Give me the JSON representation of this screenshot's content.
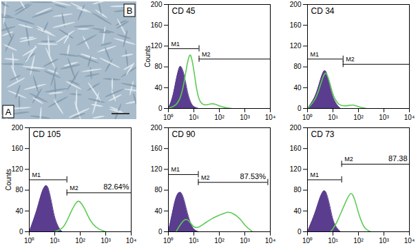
{
  "panel_labels": {
    "photo": "A",
    "histograms": "B"
  },
  "chart_data": [
    {
      "type": "line",
      "title": "CD 45",
      "log": "x",
      "xlim": [
        1,
        10000
      ],
      "xticks": [
        {
          "value": 1,
          "label": "10⁰"
        },
        {
          "value": 10,
          "label": "10¹"
        },
        {
          "value": 100,
          "label": "10²"
        },
        {
          "value": 1000,
          "label": "10³"
        },
        {
          "value": 10000,
          "label": "10⁴"
        }
      ],
      "ylim": [
        0,
        200
      ],
      "yticks": [
        0,
        40,
        80,
        120,
        160,
        200
      ],
      "ylabel": "Counts",
      "series": [
        {
          "type": "area",
          "color": "#5a3d8f",
          "x": [
            1,
            1.5,
            2,
            2.5,
            3,
            4,
            5,
            6,
            8,
            10,
            15
          ],
          "values": [
            0,
            20,
            55,
            75,
            85,
            70,
            45,
            25,
            8,
            3,
            0
          ]
        },
        {
          "type": "line",
          "color": "#5ccc55",
          "x": [
            1,
            2,
            3,
            4,
            5,
            6,
            7,
            8,
            10,
            12,
            15,
            20,
            30,
            50,
            70,
            100,
            150,
            300
          ],
          "values": [
            0,
            5,
            20,
            45,
            75,
            95,
            105,
            100,
            75,
            45,
            20,
            8,
            6,
            10,
            8,
            5,
            2,
            0
          ]
        }
      ],
      "gates": [
        {
          "name": "M1",
          "x": [
            1,
            16
          ],
          "level": 115
        },
        {
          "name": "M2",
          "x": [
            16,
            10000
          ],
          "level": 95
        }
      ]
    },
    {
      "type": "line",
      "title": "CD 34",
      "log": "x",
      "xlim": [
        1,
        10000
      ],
      "xticks": [
        {
          "value": 1,
          "label": "10⁰"
        },
        {
          "value": 10,
          "label": "10¹"
        },
        {
          "value": 100,
          "label": "10²"
        },
        {
          "value": 1000,
          "label": "10³"
        },
        {
          "value": 10000,
          "label": "10⁴"
        }
      ],
      "ylim": [
        0,
        200
      ],
      "yticks": [
        0,
        40,
        80,
        120,
        160,
        200
      ],
      "series": [
        {
          "type": "area",
          "color": "#5a3d8f",
          "x": [
            1,
            2,
            3,
            4,
            5,
            6,
            8,
            10,
            15,
            20
          ],
          "values": [
            0,
            20,
            50,
            70,
            75,
            65,
            40,
            20,
            5,
            0
          ]
        },
        {
          "type": "line",
          "color": "#5ccc55",
          "x": [
            1,
            2,
            3,
            4,
            5,
            6,
            8,
            10,
            15,
            20,
            40,
            60,
            100,
            200
          ],
          "values": [
            0,
            15,
            40,
            60,
            70,
            65,
            45,
            25,
            10,
            5,
            5,
            8,
            3,
            0
          ]
        }
      ],
      "gates": [
        {
          "name": "M1",
          "x": [
            1,
            25
          ],
          "level": 95
        },
        {
          "name": "M2",
          "x": [
            25,
            10000
          ],
          "level": 85
        }
      ]
    },
    {
      "type": "line",
      "title": "CD 105",
      "log": "x",
      "xlim": [
        1,
        10000
      ],
      "xticks": [
        {
          "value": 1,
          "label": "10⁰"
        },
        {
          "value": 10,
          "label": "10¹"
        },
        {
          "value": 100,
          "label": "10²"
        },
        {
          "value": 1000,
          "label": "10³"
        },
        {
          "value": 10000,
          "label": "10⁴"
        }
      ],
      "ylim": [
        0,
        200
      ],
      "yticks": [
        0,
        40,
        80,
        120,
        160,
        200
      ],
      "ylabel": "Counts",
      "series": [
        {
          "type": "area",
          "color": "#5a3d8f",
          "x": [
            1,
            2,
            3,
            4,
            5,
            6,
            8,
            10,
            15,
            20
          ],
          "values": [
            0,
            40,
            75,
            88,
            90,
            80,
            50,
            25,
            5,
            0
          ]
        },
        {
          "type": "line",
          "color": "#5ccc55",
          "x": [
            10,
            20,
            30,
            40,
            60,
            80,
            100,
            150,
            200,
            300,
            500,
            1000
          ],
          "values": [
            0,
            5,
            20,
            35,
            52,
            60,
            58,
            45,
            30,
            15,
            5,
            0
          ]
        }
      ],
      "gates": [
        {
          "name": "M1",
          "x": [
            1,
            30
          ],
          "level": 100
        },
        {
          "name": "M2",
          "x": [
            30,
            10000
          ],
          "level": 75,
          "label": "82.64%"
        }
      ]
    },
    {
      "type": "line",
      "title": "CD 90",
      "log": "x",
      "xlim": [
        1,
        10000
      ],
      "xticks": [
        {
          "value": 1,
          "label": "10⁰"
        },
        {
          "value": 10,
          "label": "10¹"
        },
        {
          "value": 100,
          "label": "10²"
        },
        {
          "value": 1000,
          "label": "10³"
        },
        {
          "value": 10000,
          "label": "10⁴"
        }
      ],
      "ylim": [
        0,
        200
      ],
      "yticks": [
        0,
        40,
        80,
        120,
        160,
        200
      ],
      "series": [
        {
          "type": "area",
          "color": "#5a3d8f",
          "x": [
            1,
            1.5,
            2,
            3,
            4,
            5,
            6,
            8,
            10,
            15
          ],
          "values": [
            0,
            40,
            70,
            80,
            65,
            45,
            30,
            12,
            4,
            0
          ]
        },
        {
          "type": "line",
          "color": "#5ccc55",
          "x": [
            2,
            3,
            5,
            8,
            10,
            15,
            20,
            30,
            50,
            80,
            100,
            150,
            200,
            300,
            500,
            800,
            1000,
            2000
          ],
          "values": [
            0,
            15,
            28,
            15,
            8,
            8,
            12,
            18,
            25,
            30,
            32,
            35,
            38,
            37,
            30,
            20,
            12,
            0
          ]
        }
      ],
      "gates": [
        {
          "name": "M1",
          "x": [
            1,
            15
          ],
          "level": 110
        },
        {
          "name": "M2",
          "x": [
            15,
            8000
          ],
          "level": 95,
          "label": "87.53%"
        }
      ]
    },
    {
      "type": "line",
      "title": "CD 73",
      "log": "x",
      "xlim": [
        1,
        10000
      ],
      "xticks": [
        {
          "value": 1,
          "label": "10⁰"
        },
        {
          "value": 10,
          "label": "10¹"
        },
        {
          "value": 100,
          "label": "10²"
        },
        {
          "value": 1000,
          "label": "10³"
        },
        {
          "value": 10000,
          "label": "10⁴"
        }
      ],
      "ylim": [
        0,
        200
      ],
      "yticks": [
        0,
        40,
        80,
        120,
        160,
        200
      ],
      "series": [
        {
          "type": "area",
          "color": "#5a3d8f",
          "x": [
            1,
            2,
            3,
            4,
            5,
            6,
            8,
            10,
            15,
            20
          ],
          "values": [
            0,
            35,
            65,
            78,
            80,
            70,
            45,
            20,
            5,
            0
          ]
        },
        {
          "type": "line",
          "color": "#5ccc55",
          "x": [
            8,
            10,
            15,
            20,
            30,
            40,
            50,
            60,
            80,
            100,
            150,
            200,
            300
          ],
          "values": [
            0,
            5,
            20,
            35,
            55,
            68,
            75,
            72,
            55,
            35,
            12,
            4,
            0
          ]
        }
      ],
      "gates": [
        {
          "name": "M1",
          "x": [
            1,
            22
          ],
          "level": 100
        },
        {
          "name": "M2",
          "x": [
            22,
            10000
          ],
          "level": 130,
          "label": "87.38"
        }
      ]
    }
  ]
}
